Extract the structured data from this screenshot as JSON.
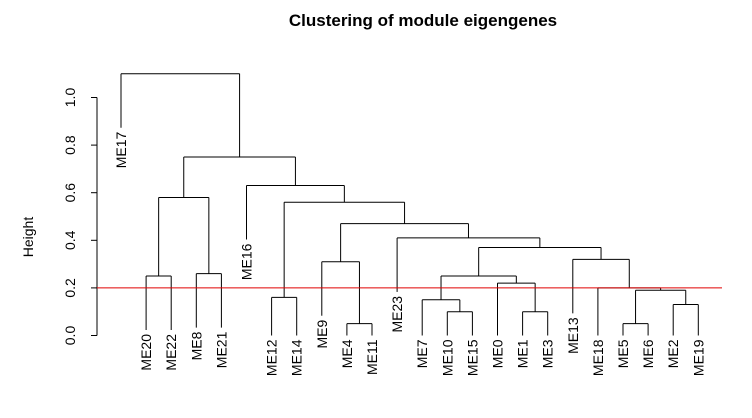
{
  "chart_data": {
    "type": "dendrogram",
    "title": "Clustering of module eigengenes",
    "ylabel": "Height",
    "xlabel": "",
    "ylim": [
      0,
      1.1
    ],
    "yticks": [
      "0.0",
      "0.2",
      "0.4",
      "0.6",
      "0.8",
      "1.0"
    ],
    "cut_height": 0.2,
    "cut_line_color": "#e00000",
    "leaves": [
      "ME17",
      "ME20",
      "ME22",
      "ME8",
      "ME21",
      "ME16",
      "ME12",
      "ME14",
      "ME9",
      "ME4",
      "ME11",
      "ME23",
      "ME7",
      "ME10",
      "ME15",
      "ME0",
      "ME1",
      "ME3",
      "ME13",
      "ME18",
      "ME5",
      "ME6",
      "ME2",
      "ME19"
    ],
    "merges": [
      {
        "left": "ME20",
        "right": "ME22",
        "height": 0.25
      },
      {
        "left": "ME8",
        "right": "ME21",
        "height": 0.26
      },
      {
        "left": [
          "ME20",
          "ME22"
        ],
        "right": [
          "ME8",
          "ME21"
        ],
        "height": 0.58
      },
      {
        "left": "ME12",
        "right": "ME14",
        "height": 0.16
      },
      {
        "left": "ME4",
        "right": "ME11",
        "height": 0.05
      },
      {
        "left": "ME9",
        "right": [
          "ME4",
          "ME11"
        ],
        "height": 0.31
      },
      {
        "left": "ME10",
        "right": "ME15",
        "height": 0.1
      },
      {
        "left": "ME7",
        "right": [
          "ME10",
          "ME15"
        ],
        "height": 0.15
      },
      {
        "left": "ME1",
        "right": "ME3",
        "height": 0.1
      },
      {
        "left": "ME0",
        "right": [
          "ME1",
          "ME3"
        ],
        "height": 0.22
      },
      {
        "left": [
          "ME7",
          "ME10",
          "ME15"
        ],
        "right": [
          "ME0",
          "ME1",
          "ME3"
        ],
        "height": 0.25
      },
      {
        "left": "ME5",
        "right": "ME6",
        "height": 0.05
      },
      {
        "left": "ME2",
        "right": "ME19",
        "height": 0.13
      },
      {
        "left": [
          "ME5",
          "ME6"
        ],
        "right": [
          "ME2",
          "ME19"
        ],
        "height": 0.19
      },
      {
        "left": "ME18",
        "right": [
          "ME5",
          "ME6",
          "ME2",
          "ME19"
        ],
        "height": 0.2
      },
      {
        "left": "ME13",
        "right": [
          "ME18",
          "ME5",
          "ME6",
          "ME2",
          "ME19"
        ],
        "height": 0.32
      },
      {
        "left": [
          "ME7",
          "ME10",
          "ME15",
          "ME0",
          "ME1",
          "ME3"
        ],
        "right": [
          "ME13",
          "ME18",
          "ME5",
          "ME6",
          "ME2",
          "ME19"
        ],
        "height": 0.37
      },
      {
        "left": "ME23",
        "right": [
          "ME7",
          "ME10",
          "ME15",
          "ME0",
          "ME1",
          "ME3",
          "ME13",
          "ME18",
          "ME5",
          "ME6",
          "ME2",
          "ME19"
        ],
        "height": 0.41
      },
      {
        "left": [
          "ME9",
          "ME4",
          "ME11"
        ],
        "right": [
          "ME23",
          "ME7",
          "ME10",
          "ME15",
          "ME0",
          "ME1",
          "ME3",
          "ME13",
          "ME18",
          "ME5",
          "ME6",
          "ME2",
          "ME19"
        ],
        "height": 0.47
      },
      {
        "left": [
          "ME12",
          "ME14"
        ],
        "right": [
          "ME9",
          "ME4",
          "ME11",
          "ME23",
          "ME7",
          "ME10",
          "ME15",
          "ME0",
          "ME1",
          "ME3",
          "ME13",
          "ME18",
          "ME5",
          "ME6",
          "ME2",
          "ME19"
        ],
        "height": 0.56
      },
      {
        "left": "ME16",
        "right": [
          "ME12",
          "ME14",
          "ME9",
          "ME4",
          "ME11",
          "ME23",
          "ME7",
          "ME10",
          "ME15",
          "ME0",
          "ME1",
          "ME3",
          "ME13",
          "ME18",
          "ME5",
          "ME6",
          "ME2",
          "ME19"
        ],
        "height": 0.63
      },
      {
        "left": [
          "ME20",
          "ME22",
          "ME8",
          "ME21"
        ],
        "right": [
          "ME16",
          "ME12",
          "ME14",
          "ME9",
          "ME4",
          "ME11",
          "ME23",
          "ME7",
          "ME10",
          "ME15",
          "ME0",
          "ME1",
          "ME3",
          "ME13",
          "ME18",
          "ME5",
          "ME6",
          "ME2",
          "ME19"
        ],
        "height": 0.75
      },
      {
        "left": "ME17",
        "right": [
          "ME20",
          "ME22",
          "ME8",
          "ME21",
          "ME16",
          "ME12",
          "ME14",
          "ME9",
          "ME4",
          "ME11",
          "ME23",
          "ME7",
          "ME10",
          "ME15",
          "ME0",
          "ME1",
          "ME3",
          "ME13",
          "ME18",
          "ME5",
          "ME6",
          "ME2",
          "ME19"
        ],
        "height": 1.1
      }
    ]
  }
}
